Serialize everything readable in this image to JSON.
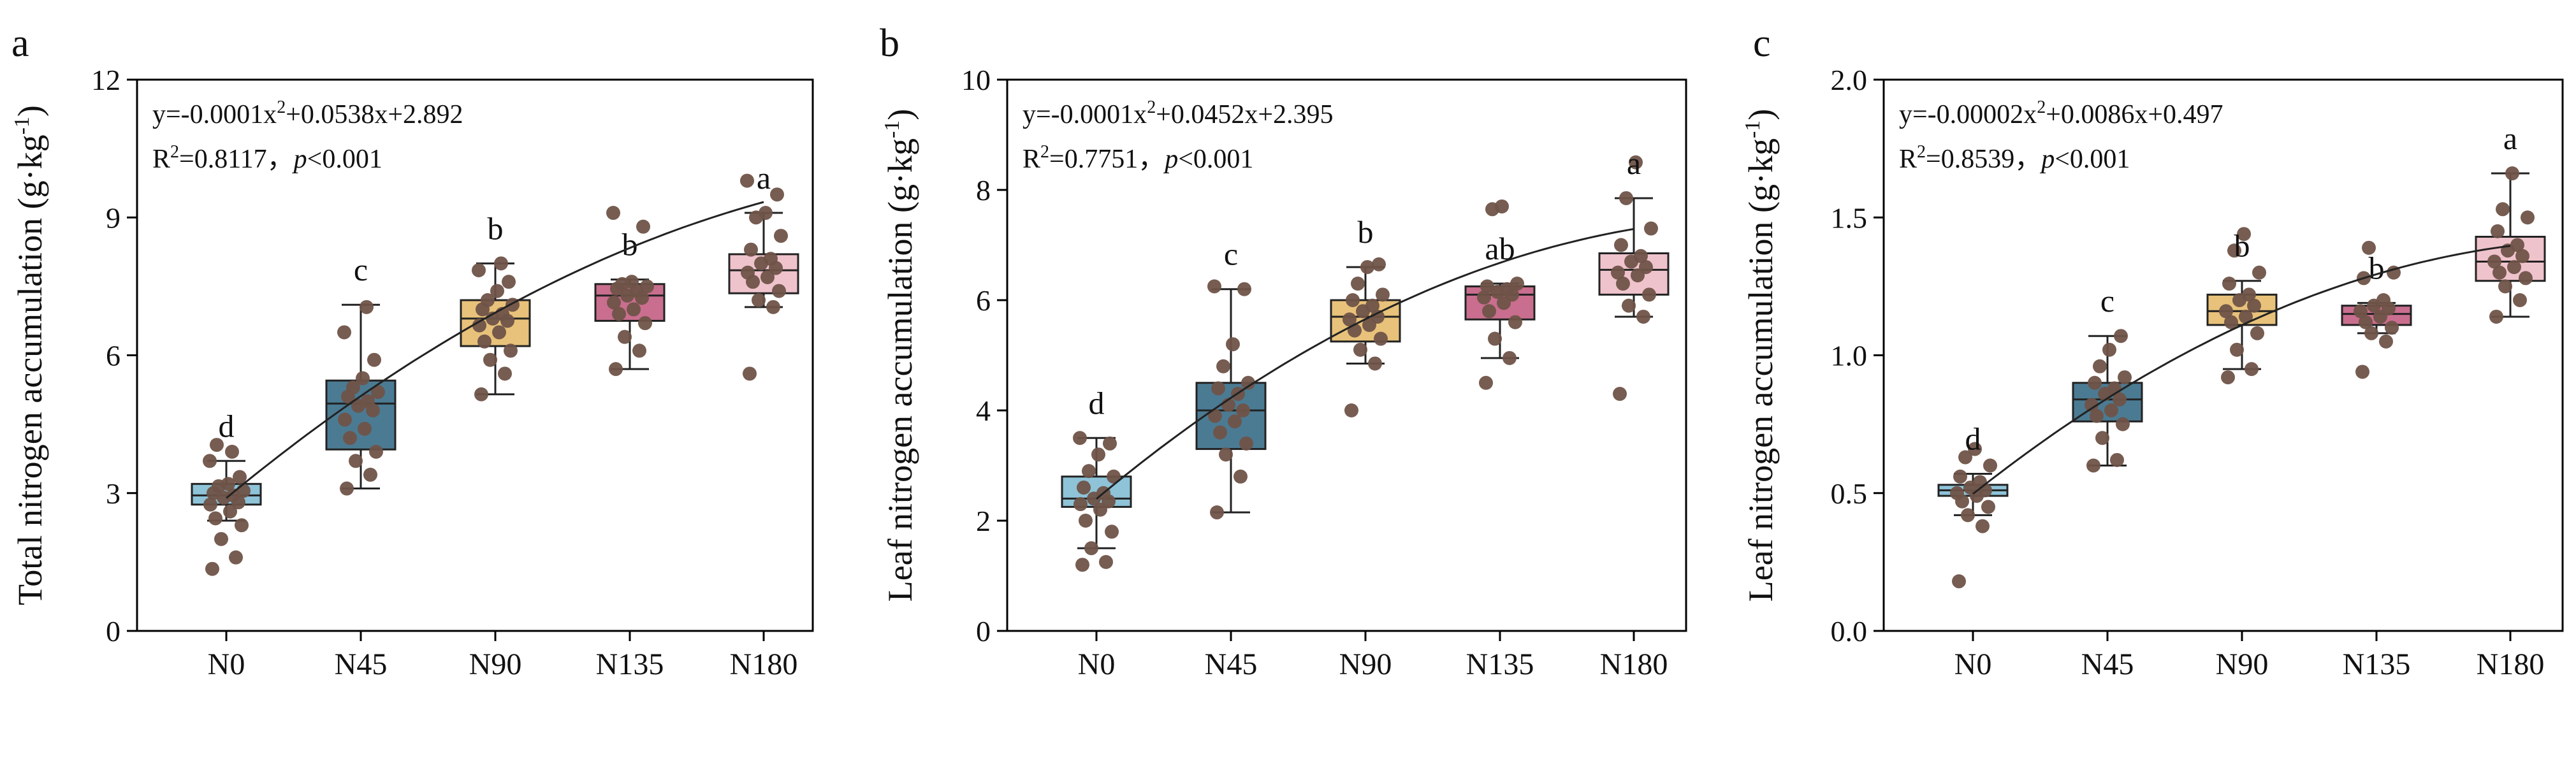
{
  "chart_data": [
    {
      "panel_label": "a",
      "type": "box",
      "ylabel_main": "Total nitrogen accumulation (g·kg",
      "ylabel_sup": "-1",
      "ylabel_close": ")",
      "ylim": [
        0,
        12
      ],
      "yticks": [
        0,
        3,
        6,
        9,
        12
      ],
      "categories": [
        "N0",
        "N45",
        "N90",
        "N135",
        "N180"
      ],
      "equation": {
        "prefix": "y=-0.0001x",
        "sup": "2",
        "suffix": "+0.0538x+2.892"
      },
      "r2": {
        "prefix": "R",
        "sup": "2",
        "value": "=0.8117，",
        "p_italic": "p",
        "p_rest": "<0.001"
      },
      "fit": {
        "a": -0.0001,
        "b": 0.0538,
        "c": 2.892
      },
      "boxes": [
        {
          "category": "N0",
          "letter": "d",
          "whisker_low": 2.4,
          "q1": 2.75,
          "median": 2.95,
          "q3": 3.2,
          "whisker_high": 3.7,
          "points": [
            1.35,
            1.6,
            2.0,
            2.3,
            2.45,
            2.6,
            2.75,
            2.8,
            2.9,
            2.95,
            3.0,
            3.05,
            3.15,
            3.2,
            3.35,
            3.7,
            3.9,
            4.05
          ]
        },
        {
          "category": "N45",
          "letter": "c",
          "whisker_low": 3.1,
          "q1": 3.95,
          "median": 4.95,
          "q3": 5.45,
          "whisker_high": 7.1,
          "points": [
            3.1,
            3.4,
            3.7,
            3.9,
            4.2,
            4.4,
            4.6,
            4.8,
            4.9,
            5.0,
            5.1,
            5.2,
            5.3,
            5.5,
            5.9,
            6.5,
            7.05
          ]
        },
        {
          "category": "N90",
          "letter": "b",
          "whisker_low": 5.15,
          "q1": 6.2,
          "median": 6.8,
          "q3": 7.2,
          "whisker_high": 8.0,
          "points": [
            5.15,
            5.6,
            5.9,
            6.1,
            6.3,
            6.5,
            6.65,
            6.75,
            6.8,
            6.9,
            7.0,
            7.1,
            7.2,
            7.4,
            7.6,
            7.85,
            8.0
          ]
        },
        {
          "category": "N135",
          "letter": "b",
          "whisker_low": 5.7,
          "q1": 6.75,
          "median": 7.3,
          "q3": 7.55,
          "whisker_high": 7.65,
          "points": [
            5.7,
            6.1,
            6.4,
            6.7,
            6.9,
            7.0,
            7.15,
            7.25,
            7.3,
            7.4,
            7.45,
            7.5,
            7.55,
            7.6,
            8.8,
            9.1
          ]
        },
        {
          "category": "N180",
          "letter": "a",
          "whisker_low": 7.05,
          "q1": 7.35,
          "median": 7.85,
          "q3": 8.2,
          "whisker_high": 9.1,
          "points": [
            5.6,
            7.05,
            7.2,
            7.4,
            7.6,
            7.7,
            7.8,
            7.9,
            8.0,
            8.1,
            8.3,
            8.6,
            9.0,
            9.1,
            9.5,
            9.8
          ]
        }
      ]
    },
    {
      "panel_label": "b",
      "type": "box",
      "ylabel_main": "Leaf nitrogen accumulation (g·kg",
      "ylabel_sup": "-1",
      "ylabel_close": ")",
      "ylim": [
        0,
        10
      ],
      "yticks": [
        0,
        2,
        4,
        6,
        8,
        10
      ],
      "categories": [
        "N0",
        "N45",
        "N90",
        "N135",
        "N180"
      ],
      "equation": {
        "prefix": "y=-0.0001x",
        "sup": "2",
        "suffix": "+0.0452x+2.395"
      },
      "r2": {
        "prefix": "R",
        "sup": "2",
        "value": "=0.7751，",
        "p_italic": "p",
        "p_rest": "<0.001"
      },
      "fit": {
        "a": -0.0001,
        "b": 0.0452,
        "c": 2.395
      },
      "boxes": [
        {
          "category": "N0",
          "letter": "d",
          "whisker_low": 1.5,
          "q1": 2.25,
          "median": 2.4,
          "q3": 2.8,
          "whisker_high": 3.5,
          "points": [
            1.2,
            1.25,
            1.5,
            1.8,
            2.0,
            2.2,
            2.3,
            2.35,
            2.4,
            2.5,
            2.6,
            2.8,
            2.9,
            3.2,
            3.4,
            3.5
          ]
        },
        {
          "category": "N45",
          "letter": "c",
          "whisker_low": 2.15,
          "q1": 3.3,
          "median": 4.0,
          "q3": 4.5,
          "whisker_high": 6.2,
          "points": [
            2.15,
            2.8,
            3.2,
            3.4,
            3.6,
            3.8,
            3.9,
            4.0,
            4.1,
            4.3,
            4.4,
            4.5,
            4.8,
            5.2,
            6.2,
            6.25
          ]
        },
        {
          "category": "N90",
          "letter": "b",
          "whisker_low": 4.85,
          "q1": 5.25,
          "median": 5.7,
          "q3": 6.0,
          "whisker_high": 6.6,
          "points": [
            4.0,
            4.85,
            5.1,
            5.3,
            5.45,
            5.55,
            5.65,
            5.7,
            5.8,
            5.9,
            6.0,
            6.1,
            6.3,
            6.6,
            6.65
          ]
        },
        {
          "category": "N135",
          "letter": "ab",
          "whisker_low": 4.95,
          "q1": 5.65,
          "median": 6.1,
          "q3": 6.25,
          "whisker_high": 6.3,
          "points": [
            4.5,
            4.95,
            5.3,
            5.6,
            5.8,
            5.95,
            6.05,
            6.1,
            6.15,
            6.2,
            6.25,
            6.3,
            7.65,
            7.7
          ]
        },
        {
          "category": "N180",
          "letter": "a",
          "whisker_low": 5.7,
          "q1": 6.1,
          "median": 6.55,
          "q3": 6.85,
          "whisker_high": 7.85,
          "points": [
            4.3,
            5.7,
            5.9,
            6.1,
            6.3,
            6.45,
            6.5,
            6.6,
            6.7,
            6.8,
            7.0,
            7.3,
            7.85,
            8.5
          ]
        }
      ]
    },
    {
      "panel_label": "c",
      "type": "box",
      "ylabel_main": "Leaf nitrogen accumulation (g·kg",
      "ylabel_sup": "-1",
      "ylabel_close": ")",
      "ylim": [
        0,
        2.0
      ],
      "yticks": [
        0.0,
        0.5,
        1.0,
        1.5,
        2.0
      ],
      "ytick_labels": [
        "0.0",
        "0.5",
        "1.0",
        "1.5",
        "2.0"
      ],
      "categories": [
        "N0",
        "N45",
        "N90",
        "N135",
        "N180"
      ],
      "equation": {
        "prefix": "y=-0.00002x",
        "sup": "2",
        "suffix": "+0.0086x+0.497"
      },
      "r2": {
        "prefix": "R",
        "sup": "2",
        "value": "=0.8539，",
        "p_italic": "p",
        "p_rest": "<0.001"
      },
      "fit": {
        "a": -2e-05,
        "b": 0.0086,
        "c": 0.497
      },
      "boxes": [
        {
          "category": "N0",
          "letter": "d",
          "whisker_low": 0.42,
          "q1": 0.49,
          "median": 0.51,
          "q3": 0.53,
          "whisker_high": 0.57,
          "points": [
            0.18,
            0.38,
            0.42,
            0.45,
            0.47,
            0.49,
            0.5,
            0.51,
            0.52,
            0.54,
            0.56,
            0.6,
            0.63,
            0.66
          ]
        },
        {
          "category": "N45",
          "letter": "c",
          "whisker_low": 0.6,
          "q1": 0.76,
          "median": 0.84,
          "q3": 0.9,
          "whisker_high": 1.07,
          "points": [
            0.6,
            0.62,
            0.7,
            0.75,
            0.78,
            0.8,
            0.82,
            0.84,
            0.86,
            0.88,
            0.9,
            0.92,
            0.96,
            1.02,
            1.07
          ]
        },
        {
          "category": "N90",
          "letter": "b",
          "whisker_low": 0.95,
          "q1": 1.11,
          "median": 1.16,
          "q3": 1.22,
          "whisker_high": 1.27,
          "points": [
            0.92,
            0.95,
            1.02,
            1.08,
            1.12,
            1.14,
            1.16,
            1.18,
            1.2,
            1.22,
            1.26,
            1.3,
            1.38,
            1.44
          ]
        },
        {
          "category": "N135",
          "letter": "b",
          "whisker_low": 1.08,
          "q1": 1.11,
          "median": 1.15,
          "q3": 1.18,
          "whisker_high": 1.19,
          "points": [
            0.94,
            1.05,
            1.08,
            1.1,
            1.12,
            1.14,
            1.16,
            1.17,
            1.18,
            1.2,
            1.28,
            1.3,
            1.39
          ]
        },
        {
          "category": "N180",
          "letter": "a",
          "whisker_low": 1.14,
          "q1": 1.27,
          "median": 1.34,
          "q3": 1.43,
          "whisker_high": 1.66,
          "points": [
            1.14,
            1.2,
            1.25,
            1.28,
            1.3,
            1.32,
            1.34,
            1.36,
            1.38,
            1.4,
            1.45,
            1.5,
            1.53,
            1.66
          ]
        }
      ]
    }
  ],
  "colors": {
    "box_fills": [
      "#8ec3d8",
      "#4b7b93",
      "#e8c27a",
      "#c96e8e",
      "#efc3cc"
    ],
    "point": "#6f5348",
    "line": "#222222",
    "axis": "#000000"
  }
}
